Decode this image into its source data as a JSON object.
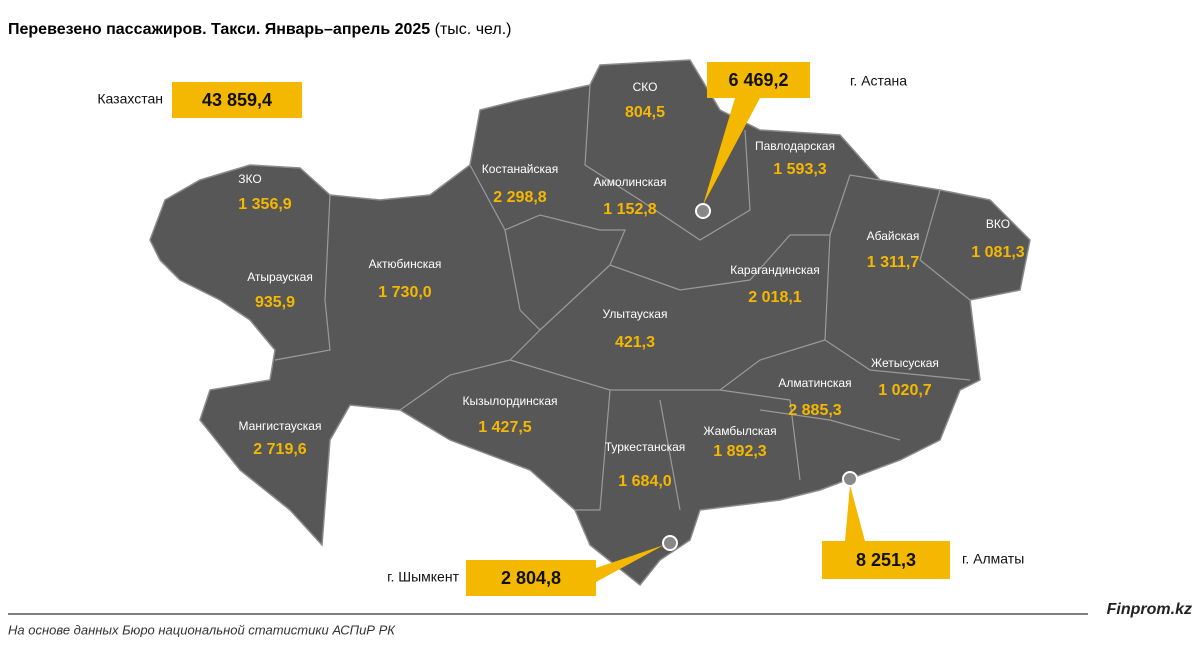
{
  "header": {
    "title": "Перевезено пассажиров. Такси. Январь–апрель 2025",
    "unit": "(тыс. чел.)"
  },
  "total": {
    "label": "Казахстан",
    "value": "43 859,4"
  },
  "regions": [
    {
      "name": "ЗКО",
      "value": "1 356,9"
    },
    {
      "name": "Атырауская",
      "value": "935,9"
    },
    {
      "name": "Актюбинская",
      "value": "1 730,0"
    },
    {
      "name": "Мангистауская",
      "value": "2 719,6"
    },
    {
      "name": "Костанайская",
      "value": "2 298,8"
    },
    {
      "name": "СКО",
      "value": "804,5"
    },
    {
      "name": "Акмолинская",
      "value": "1 152,8"
    },
    {
      "name": "Павлодарская",
      "value": "1 593,3"
    },
    {
      "name": "Абайская",
      "value": "1 311,7"
    },
    {
      "name": "ВКО",
      "value": "1 081,3"
    },
    {
      "name": "Карагандинская",
      "value": "2 018,1"
    },
    {
      "name": "Улытауская",
      "value": "421,3"
    },
    {
      "name": "Кызылординская",
      "value": "1 427,5"
    },
    {
      "name": "Туркестанская",
      "value": "1 684,0"
    },
    {
      "name": "Жамбылская",
      "value": "1 892,3"
    },
    {
      "name": "Алматинская",
      "value": "2 885,3"
    },
    {
      "name": "Жетысуская",
      "value": "1 020,7"
    }
  ],
  "cities": [
    {
      "name": "г. Астана",
      "value": "6 469,2"
    },
    {
      "name": "г. Шымкент",
      "value": "2 804,8"
    },
    {
      "name": "г. Алматы",
      "value": "8 251,3"
    }
  ],
  "footer": {
    "source": "На основе данных Бюро национальной статистики АСПиР РК",
    "brand": "Finprom.kz"
  }
}
